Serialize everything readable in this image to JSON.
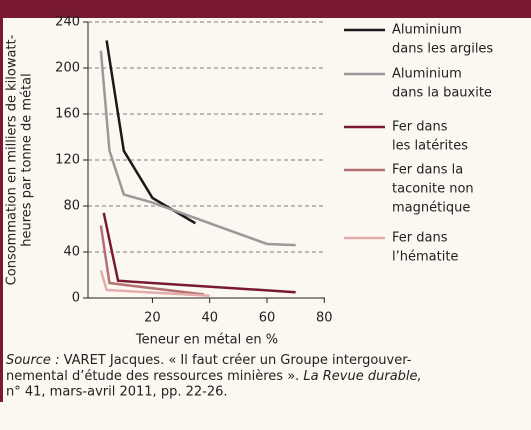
{
  "chart_data": {
    "type": "line",
    "ylabel": [
      "Consommation en milliers de kilowatt-",
      "heures par tonne de métal"
    ],
    "xlabel": "Teneur en métal en %",
    "xlim": [
      -2.5,
      82
    ],
    "xticks": [
      20,
      40,
      60,
      80
    ],
    "ylim": [
      0,
      240
    ],
    "yticks": [
      0,
      40,
      80,
      120,
      160,
      200,
      240
    ],
    "grid": true,
    "series": [
      {
        "name": [
          "Aluminium",
          "dans les argiles"
        ],
        "color": "#1a1a1a",
        "x": [
          4,
          10,
          20,
          35
        ],
        "values": [
          224,
          128,
          87,
          65
        ]
      },
      {
        "name": [
          "Aluminium",
          "dans la bauxite"
        ],
        "color": "#999999",
        "x": [
          2,
          5,
          10,
          20,
          60,
          70
        ],
        "values": [
          215,
          128,
          90,
          83,
          47,
          46
        ]
      },
      {
        "name": [
          "Fer dans",
          "les latérites"
        ],
        "color": "#7a1a30",
        "x": [
          3,
          8,
          70
        ],
        "values": [
          74,
          15,
          5
        ]
      },
      {
        "name": [
          "Fer dans la",
          "taconite non",
          "magnétique"
        ],
        "color": "#b57272",
        "x": [
          2,
          5,
          38
        ],
        "values": [
          63,
          13,
          3
        ]
      },
      {
        "name": [
          "Fer dans",
          "l’hématite"
        ],
        "color": "#e3adad",
        "x": [
          2,
          4,
          40
        ],
        "values": [
          24,
          7,
          2
        ]
      }
    ]
  },
  "source": {
    "label": "Source :",
    "line1": "VARET Jacques. « Il faut créer un Groupe intergouver-",
    "line2": "nemental d’étude des ressources minières ». ",
    "journal": "La Revue durable,",
    "line3": "n° 41, mars-avril 2011, pp. 22-26."
  }
}
